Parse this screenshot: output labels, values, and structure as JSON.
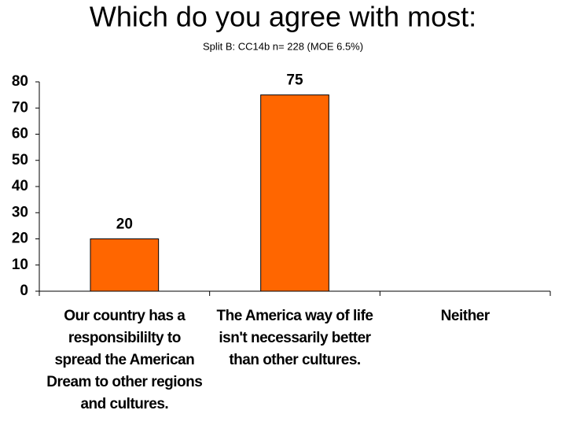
{
  "chart_data": {
    "type": "bar",
    "title": "Which do you agree with most:",
    "subtitle": "Split B:  CC14b n= 228 (MOE 6.5%)",
    "categories": [
      "Our country has a responsibililty to spread the American Dream to other regions and cultures.",
      "The America way of life isn't necessarily better than other cultures.",
      "Neither"
    ],
    "values": [
      20,
      75,
      null
    ],
    "color": "#ff6600",
    "ylim": [
      0,
      80
    ],
    "yticks": [
      0,
      10,
      20,
      30,
      40,
      50,
      60,
      70,
      80
    ]
  }
}
